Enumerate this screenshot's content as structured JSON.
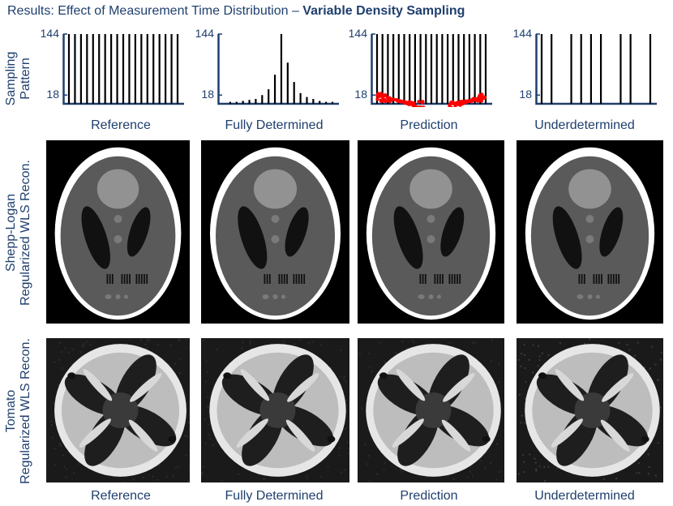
{
  "title": {
    "prefix": "Results: Effect of Measurement Time Distribution – ",
    "bold": "Variable Density Sampling"
  },
  "row_labels": {
    "sampling": [
      "Sampling",
      "Pattern"
    ],
    "shepp": [
      "Shepp-Logan",
      "Regularized WLS Recon."
    ],
    "tomato": [
      "Tomato",
      "Regularized WLS Recon."
    ]
  },
  "column_labels": [
    "Reference",
    "Fully Determined",
    "Prediction",
    "Underdetermined"
  ],
  "y_ticks": [
    "144",
    "18"
  ],
  "chart_data": [
    {
      "type": "bar",
      "title": "Reference",
      "yticks": [
        144,
        18
      ],
      "values": [
        144,
        144,
        144,
        144,
        144,
        144,
        144,
        144,
        144,
        144,
        144,
        144,
        144,
        144,
        144,
        144,
        144,
        144,
        144
      ]
    },
    {
      "type": "bar",
      "title": "Fully Determined",
      "yticks": [
        144,
        18
      ],
      "values": [
        0,
        4,
        4,
        6,
        8,
        10,
        18,
        30,
        60,
        144,
        85,
        45,
        22,
        14,
        10,
        6,
        4,
        4
      ]
    },
    {
      "type": "bar",
      "title": "Prediction",
      "yticks": [
        144,
        18
      ],
      "values": [
        144,
        144,
        144,
        144,
        144,
        144,
        144,
        144,
        144,
        144,
        144,
        144,
        144,
        144,
        144,
        144,
        144,
        144,
        144,
        144,
        144
      ],
      "red_markers": "dense red point clusters near baseline on left and right portions"
    },
    {
      "type": "bar",
      "title": "Underdetermined",
      "yticks": [
        144,
        18
      ],
      "values": [
        144,
        144,
        0,
        144,
        144,
        144,
        144,
        0,
        144,
        144,
        0,
        144
      ]
    }
  ],
  "colors": {
    "text": "#1f3f6e",
    "axis": "#1f3f6e",
    "bar": "#000000",
    "marker": "#ff0000"
  }
}
